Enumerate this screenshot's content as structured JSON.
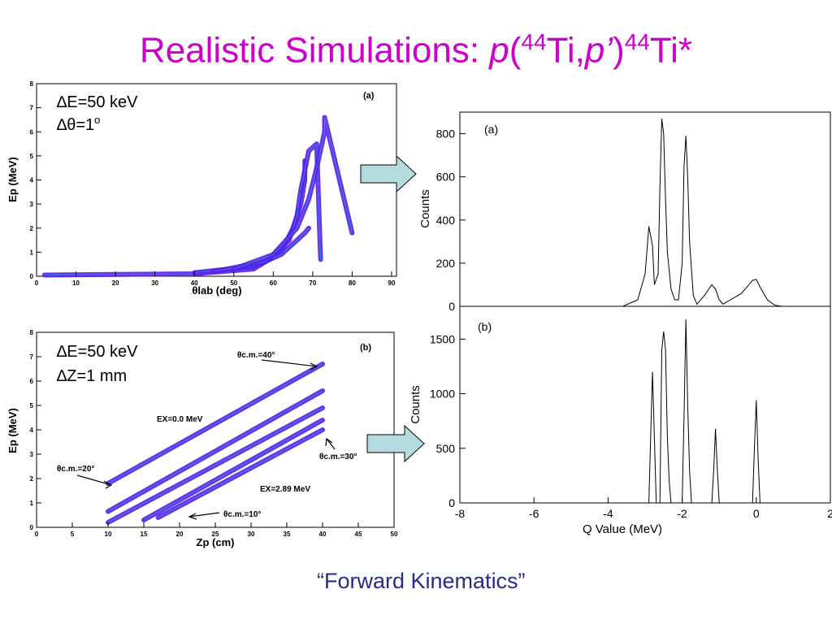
{
  "slide": {
    "title": {
      "prefix": "Realistic Simulations: ",
      "p1": "p",
      "paren_open": "(",
      "mass1": "44",
      "ti1": "Ti,",
      "p2": "p’",
      "paren_close": ")",
      "mass2": "44",
      "ti2": "Ti*"
    },
    "footer": "“Forward Kinematics”",
    "colors": {
      "title": "#cc00cc",
      "footer": "#2a2a8c",
      "arrow_fill": "#b4dce0",
      "scatter_main": "#5a1ee6",
      "scatter_hot": "#00c8e6"
    },
    "annotations": {
      "panel_a": {
        "de": "∆E=50 keV",
        "dtheta": "∆θ=1",
        "dtheta_sup": "o"
      },
      "panel_b": {
        "de": "∆E=50 keV",
        "dz": "∆Z=1 mm",
        "theta40": "θc.m.=40°",
        "theta20": "θc.m.=20°",
        "theta30": "θc.m.=30°",
        "theta10": "θc.m.=10°",
        "ex0": "EX=0.0 MeV",
        "ex289": "EX=2.89 MeV"
      }
    }
  },
  "chart_data": [
    {
      "id": "scatter-a",
      "type": "scatter",
      "panel_label": "(a)",
      "xlabel": "θlab (deg)",
      "ylabel": "Ep (MeV)",
      "xlim": [
        0,
        90
      ],
      "ylim": [
        0,
        8
      ],
      "xticks": [
        0,
        10,
        20,
        30,
        40,
        50,
        60,
        70,
        80,
        90
      ],
      "yticks": [
        0,
        1,
        2,
        3,
        4,
        5,
        6,
        7,
        8
      ],
      "bands": [
        {
          "x": [
            2,
            40,
            55,
            62,
            65,
            67,
            68,
            68
          ],
          "y": [
            0.05,
            0.1,
            0.3,
            1.0,
            2.0,
            3.0,
            4.0,
            4.8
          ]
        },
        {
          "x": [
            40,
            55,
            62,
            66,
            68,
            69
          ],
          "y": [
            0.15,
            0.4,
            0.9,
            1.5,
            1.8,
            2.0
          ]
        },
        {
          "x": [
            45,
            58,
            64,
            66,
            67,
            69,
            71,
            72
          ],
          "y": [
            0.2,
            0.6,
            1.5,
            2.5,
            3.6,
            5.2,
            5.5,
            0.7
          ]
        },
        {
          "x": [
            50,
            60,
            66,
            69,
            71,
            73,
            73,
            80
          ],
          "y": [
            0.3,
            0.9,
            2.0,
            3.2,
            4.5,
            6.0,
            6.6,
            1.8
          ]
        }
      ]
    },
    {
      "id": "hist-a",
      "type": "line",
      "panel_label": "(a)",
      "xlabel": "",
      "ylabel": "Counts",
      "xlim": [
        -8,
        2
      ],
      "ylim": [
        0,
        900
      ],
      "yticks": [
        0,
        200,
        400,
        600,
        800
      ],
      "x": [
        -3.6,
        -3.2,
        -3.0,
        -2.9,
        -2.8,
        -2.75,
        -2.65,
        -2.6,
        -2.55,
        -2.5,
        -2.45,
        -2.4,
        -2.3,
        -2.2,
        -2.1,
        -2.0,
        -1.95,
        -1.9,
        -1.85,
        -1.8,
        -1.7,
        -1.6,
        -1.4,
        -1.2,
        -1.1,
        -1.0,
        -0.9,
        -0.7,
        -0.4,
        -0.2,
        -0.1,
        0.0,
        0.1,
        0.3,
        0.5,
        0.7
      ],
      "y": [
        0,
        30,
        150,
        370,
        280,
        100,
        150,
        550,
        870,
        800,
        500,
        250,
        80,
        30,
        30,
        200,
        650,
        790,
        600,
        300,
        50,
        10,
        50,
        100,
        80,
        30,
        10,
        30,
        60,
        100,
        120,
        125,
        90,
        30,
        5,
        0
      ]
    },
    {
      "id": "scatter-b",
      "type": "scatter",
      "panel_label": "(b)",
      "xlabel": "Zp (cm)",
      "ylabel": "Ep (MeV)",
      "xlim": [
        0,
        50
      ],
      "ylim": [
        0,
        8
      ],
      "xticks": [
        0,
        5,
        10,
        15,
        20,
        25,
        30,
        35,
        40,
        45,
        50
      ],
      "yticks": [
        0,
        1,
        2,
        3,
        4,
        5,
        6,
        7,
        8
      ],
      "bands": [
        {
          "x": [
            10,
            40
          ],
          "y": [
            1.8,
            6.7
          ]
        },
        {
          "x": [
            10,
            40
          ],
          "y": [
            0.65,
            5.6
          ]
        },
        {
          "x": [
            10,
            40
          ],
          "y": [
            0.2,
            4.9
          ]
        },
        {
          "x": [
            15,
            40
          ],
          "y": [
            0.3,
            4.4
          ]
        },
        {
          "x": [
            17,
            40
          ],
          "y": [
            0.4,
            4.0
          ]
        }
      ]
    },
    {
      "id": "hist-b",
      "type": "line",
      "panel_label": "(b)",
      "xlabel": "Q Value (MeV)",
      "ylabel": "Counts",
      "xlim": [
        -8,
        2
      ],
      "ylim": [
        0,
        1800
      ],
      "xticks": [
        -8,
        -6,
        -4,
        -2,
        0,
        2
      ],
      "yticks": [
        0,
        500,
        1000,
        1500
      ],
      "x": [
        -3.0,
        -2.9,
        -2.85,
        -2.8,
        -2.75,
        -2.7,
        -2.6,
        -2.55,
        -2.5,
        -2.45,
        -2.4,
        -2.35,
        -2.3,
        -2.0,
        -1.95,
        -1.9,
        -1.85,
        -1.8,
        -1.75,
        -1.7,
        -1.2,
        -1.15,
        -1.1,
        -1.05,
        -1.0,
        -0.1,
        -0.05,
        0.0,
        0.05,
        0.1
      ],
      "y": [
        0,
        0,
        600,
        1200,
        600,
        0,
        0,
        1400,
        1570,
        1400,
        600,
        200,
        0,
        0,
        800,
        1680,
        900,
        300,
        0,
        0,
        0,
        300,
        680,
        300,
        0,
        0,
        500,
        940,
        400,
        0
      ]
    }
  ]
}
